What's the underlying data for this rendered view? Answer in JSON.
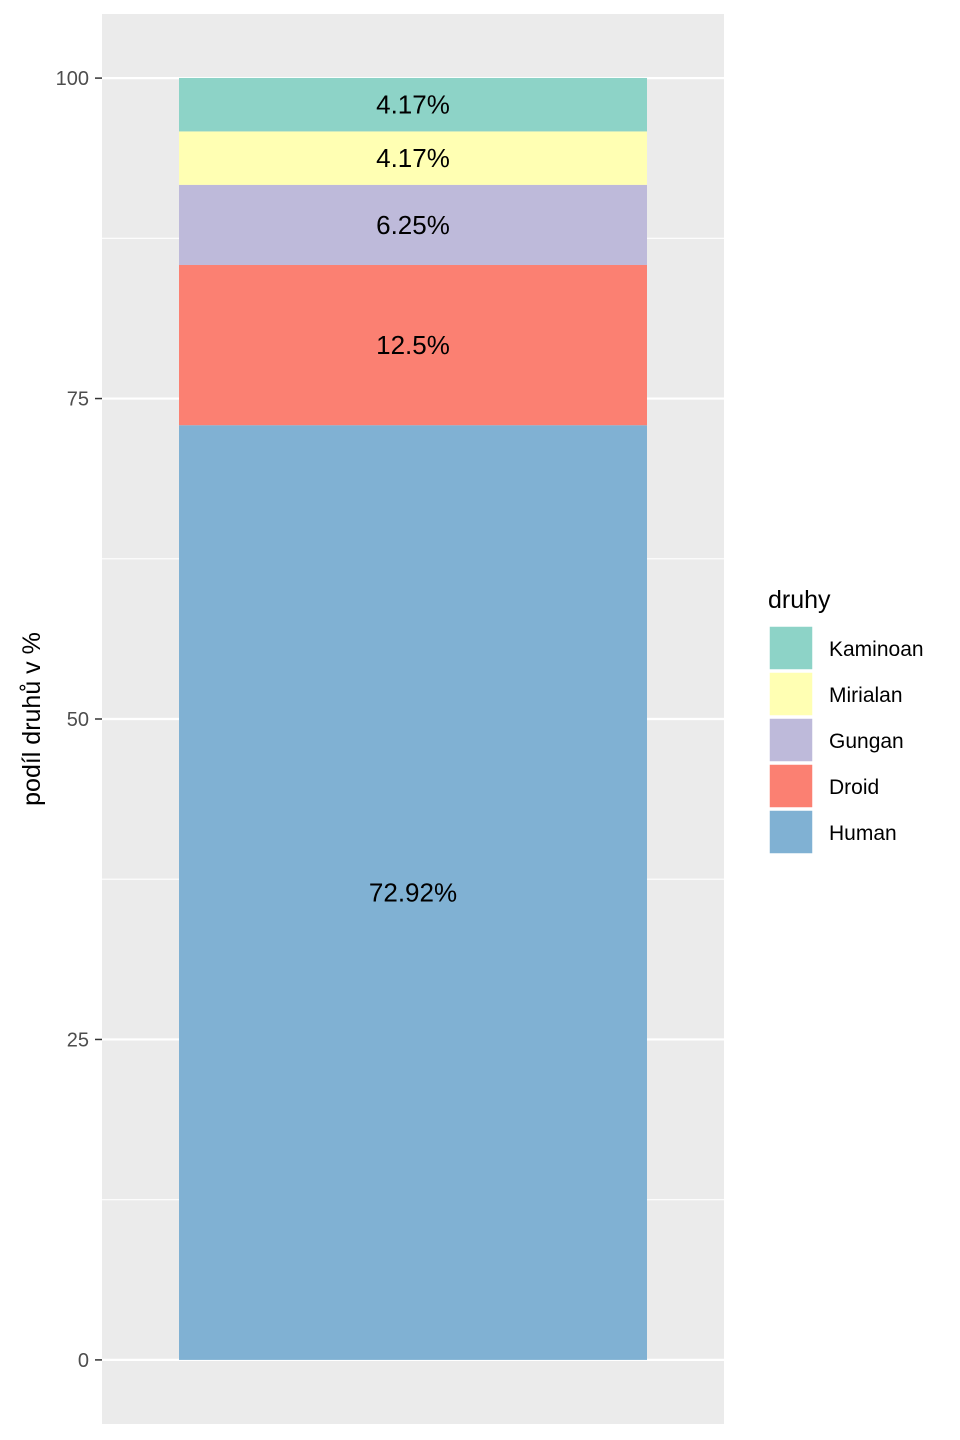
{
  "chart_data": {
    "type": "bar",
    "stacked": true,
    "ylabel": "podíl druhů v %",
    "ylim": [
      -5,
      105
    ],
    "yticks": [
      0,
      25,
      50,
      75,
      100
    ],
    "grid": true,
    "legend": {
      "title": "druhy",
      "position": "right"
    },
    "series": [
      {
        "name": "Human",
        "value": 72.92,
        "label": "72.92%",
        "color": "#80B1D3"
      },
      {
        "name": "Droid",
        "value": 12.5,
        "label": "12.5%",
        "color": "#FB8072"
      },
      {
        "name": "Gungan",
        "value": 6.25,
        "label": "6.25%",
        "color": "#BEBADA"
      },
      {
        "name": "Mirialan",
        "value": 4.17,
        "label": "4.17%",
        "color": "#FFFFB3"
      },
      {
        "name": "Kaminoan",
        "value": 4.17,
        "label": "4.17%",
        "color": "#8DD3C7"
      }
    ],
    "legend_order": [
      "Kaminoan",
      "Mirialan",
      "Gungan",
      "Droid",
      "Human"
    ],
    "panel_background": "#EBEBEB",
    "grid_color": "#FFFFFF"
  }
}
